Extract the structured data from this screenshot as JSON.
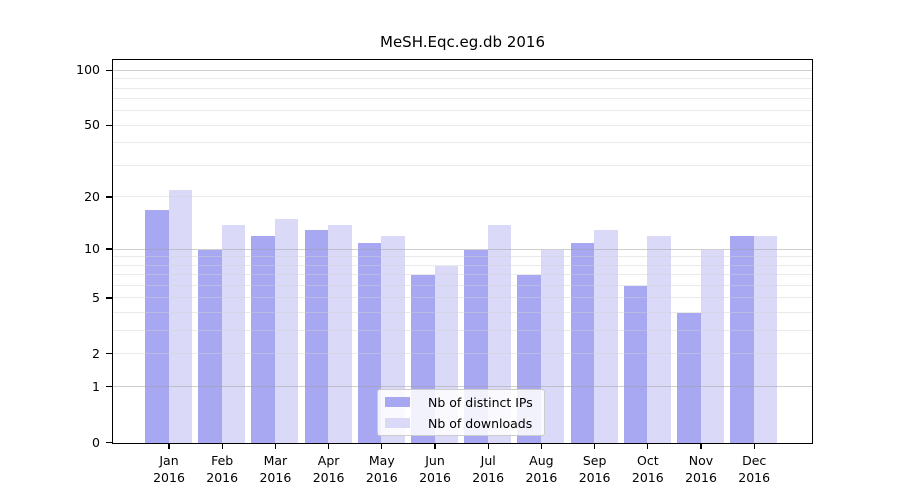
{
  "chart_data": {
    "type": "bar",
    "title": "MeSH.Eqc.eg.db 2016",
    "year_label": "2016",
    "categories": [
      "Jan",
      "Feb",
      "Mar",
      "Apr",
      "May",
      "Jun",
      "Jul",
      "Aug",
      "Sep",
      "Oct",
      "Nov",
      "Dec"
    ],
    "series": [
      {
        "name": "Nb of distinct IPs",
        "color": "#a8a8f2",
        "values": [
          17,
          10,
          12,
          13,
          11,
          7,
          10,
          7,
          11,
          6,
          4,
          12
        ]
      },
      {
        "name": "Nb of downloads",
        "color": "#dadaf8",
        "values": [
          22,
          14,
          15,
          14,
          12,
          8,
          14,
          10,
          13,
          12,
          10,
          12
        ]
      }
    ],
    "xlabel": "",
    "ylabel": "",
    "y_axis": {
      "scale": "log1p",
      "tick_values": [
        0,
        1,
        2,
        5,
        10,
        20,
        50,
        100
      ],
      "major_gridlines": [
        1,
        10,
        100
      ],
      "minor_gridlines": [
        2,
        3,
        4,
        5,
        6,
        7,
        8,
        9,
        20,
        30,
        40,
        50,
        60,
        70,
        80,
        90
      ],
      "range_min": 0,
      "range_max": 113
    },
    "grid": "on",
    "legend_position": "inside-bottom-center",
    "background_color": "#ffffff"
  }
}
